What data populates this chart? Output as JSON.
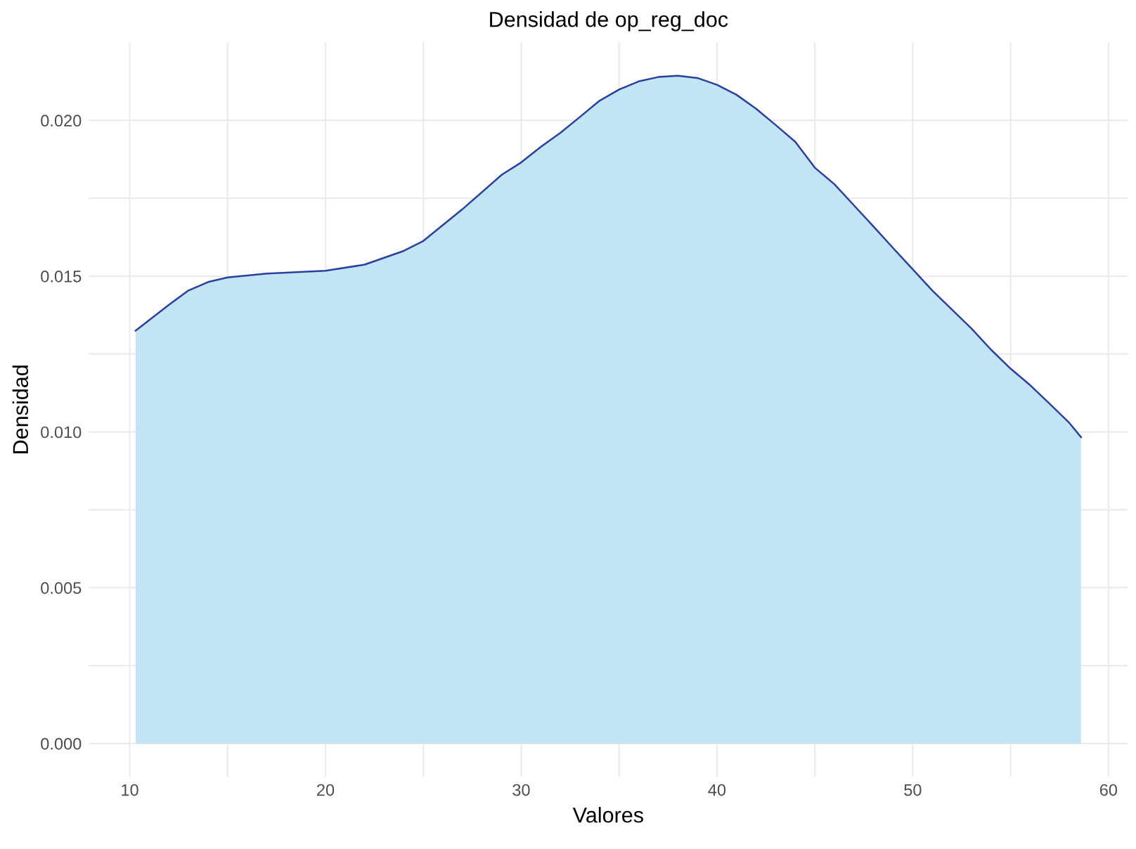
{
  "chart_data": {
    "type": "area",
    "title": "Densidad de op_reg_doc",
    "xlabel": "Valores",
    "ylabel": "Densidad",
    "x": [
      10.3,
      12,
      13,
      14,
      15,
      17,
      20,
      22,
      24,
      25,
      27,
      29,
      30,
      31,
      32,
      33,
      34,
      35,
      36,
      37,
      38,
      39,
      40,
      41,
      42,
      43,
      44,
      45,
      46,
      47,
      48,
      49,
      50,
      51,
      52,
      53,
      54,
      55,
      56,
      57,
      58,
      58.6
    ],
    "series": [
      {
        "color": "#c2e4f4",
        "values": [
          0.01325,
          0.01408,
          0.01454,
          0.01481,
          0.01496,
          0.01508,
          0.01517,
          0.01537,
          0.01581,
          0.01613,
          0.01715,
          0.01825,
          0.01865,
          0.01915,
          0.0196,
          0.02011,
          0.02063,
          0.02099,
          0.02125,
          0.02139,
          0.02143,
          0.02136,
          0.02114,
          0.02082,
          0.02037,
          0.01985,
          0.01931,
          0.01848,
          0.01795,
          0.01727,
          0.01659,
          0.0159,
          0.01522,
          0.01454,
          0.01393,
          0.01332,
          0.01264,
          0.01203,
          0.0115,
          0.0109,
          0.01029,
          0.00983
        ]
      }
    ],
    "xlim": [
      7.9,
      61.0
    ],
    "ylim": [
      -0.00107,
      0.0225
    ],
    "xticks": [
      10,
      {
        "value": 15,
        "label": null
      },
      20,
      {
        "value": 25,
        "label": null
      },
      30,
      {
        "value": 35,
        "label": null
      },
      40,
      {
        "value": 45,
        "label": null
      },
      50,
      {
        "value": 55,
        "label": null
      },
      60
    ],
    "yticks": [
      {
        "value": 0,
        "label": "0.000"
      },
      {
        "value": 0.0025,
        "label": null
      },
      {
        "value": 0.005,
        "label": "0.005"
      },
      {
        "value": 0.0075,
        "label": null
      },
      {
        "value": 0.01,
        "label": "0.010"
      },
      {
        "value": 0.0125,
        "label": null
      },
      {
        "value": 0.015,
        "label": "0.015"
      },
      {
        "value": 0.0175,
        "label": null
      },
      {
        "value": 0.02,
        "label": "0.020"
      }
    ],
    "grid": true
  }
}
